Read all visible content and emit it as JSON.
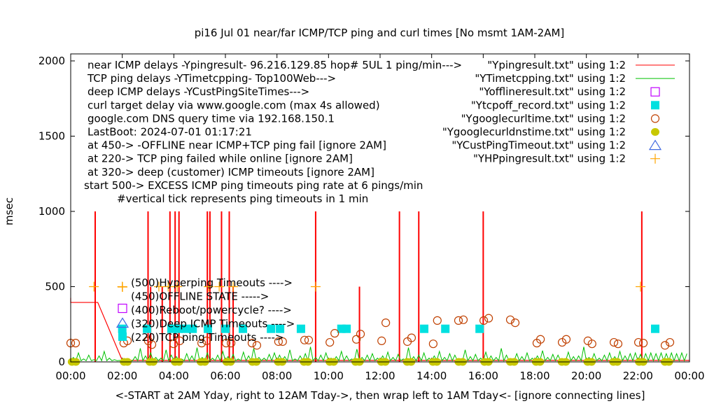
{
  "chart_data": {
    "type": "line",
    "title": "pi16 Jul 01  near/far ICMP/TCP ping and curl times [No msmt 1AM-2AM]",
    "xlabel": "<-START at 2AM Yday, right to 12AM Tday->, then wrap left to 1AM Tday<- [ignore connecting lines]",
    "ylabel": "msec",
    "xlim": [
      0,
      24
    ],
    "ylim": [
      0,
      2000
    ],
    "xticks": [
      {
        "v": 0,
        "label": "00:00"
      },
      {
        "v": 2,
        "label": "02:00"
      },
      {
        "v": 4,
        "label": "04:00"
      },
      {
        "v": 6,
        "label": "06:00"
      },
      {
        "v": 8,
        "label": "08:00"
      },
      {
        "v": 10,
        "label": "10:00"
      },
      {
        "v": 12,
        "label": "12:00"
      },
      {
        "v": 14,
        "label": "14:00"
      },
      {
        "v": 16,
        "label": "16:00"
      },
      {
        "v": 18,
        "label": "18:00"
      },
      {
        "v": 20,
        "label": "20:00"
      },
      {
        "v": 22,
        "label": "22:00"
      },
      {
        "v": 24,
        "label": "00:00"
      }
    ],
    "yticks": [
      {
        "v": 0,
        "label": "0"
      },
      {
        "v": 500,
        "label": "500"
      },
      {
        "v": 1000,
        "label": "1000"
      },
      {
        "v": 1500,
        "label": "1500"
      },
      {
        "v": 2000,
        "label": "2000"
      }
    ],
    "notes": [
      "near ICMP delays -Ypingresult- 96.216.129.85 hop# 5UL 1 ping/min--->",
      "TCP ping delays -YTimetcpping- Top100Web--->",
      "deep ICMP delays -YCustPingSiteTimes--->",
      "curl target delay via www.google.com (max 4s allowed)",
      "google.com DNS query time via 192.168.150.1",
      "LastBoot: 2024-07-01 01:17:21",
      "at 450-> -OFFLINE near ICMP+TCP ping fail [ignore 2AM]",
      "at 220-> TCP ping failed while online [ignore 2AM]",
      "at 320-> deep (customer) ICMP timeouts [ignore 2AM]",
      "start 500-> EXCESS ICMP ping timeouts ping rate at 6 pings/min",
      "#vertical tick represents ping timeouts in 1 min"
    ],
    "inner_legend": [
      {
        "label": "(500)Hyperping Timeouts ---->",
        "marker": "plus",
        "color": "#ffa500"
      },
      {
        "label": "(450)OFFLINE STATE ----->",
        "marker": "square-open",
        "color": "#c000ff"
      },
      {
        "label": "(400)Reboot/powercycle? ---->",
        "marker": "none",
        "color": "#000000"
      },
      {
        "label": "(320)Deep ICMP Timeouts ---->",
        "marker": "triangle",
        "color": "#4169e1"
      },
      {
        "label": "(220)TCP ping Timeouts ---->",
        "marker": "square-filled",
        "color": "#00e0e0"
      }
    ],
    "legend": [
      {
        "label": "\"Ypingresult.txt\" using 1:2",
        "marker": "line",
        "color": "#ff0000"
      },
      {
        "label": "\"YTimetcpping.txt\" using 1:2",
        "marker": "line",
        "color": "#00c000"
      },
      {
        "label": "\"Yofflineresult.txt\" using 1:2",
        "marker": "square-open",
        "color": "#c000ff"
      },
      {
        "label": "\"Ytcpoff_record.txt\" using 1:2",
        "marker": "square-filled",
        "color": "#00e0e0"
      },
      {
        "label": "\"Ygooglecurltime.txt\" using 1:2",
        "marker": "circle-open",
        "color": "#c04000"
      },
      {
        "label": "\"Ygooglecurldnstime.txt\" using 1:2",
        "marker": "circle-filled",
        "color": "#c8c800"
      },
      {
        "label": "\"YCustPingTimeout.txt\" using 1:2",
        "marker": "triangle",
        "color": "#4169e1"
      },
      {
        "label": "\"YHPpingresult.txt\" using 1:2",
        "marker": "plus",
        "color": "#ffa500"
      }
    ],
    "series": [
      {
        "name": "Ypingresult",
        "color": "#ff0000",
        "line": [
          [
            0,
            425
          ],
          [
            0,
            395
          ],
          [
            1.05,
            395
          ],
          [
            2.0,
            10
          ],
          [
            24,
            10
          ]
        ],
        "spikes": [
          [
            0.95,
            1000
          ],
          [
            3.0,
            1000
          ],
          [
            3.1,
            500
          ],
          [
            3.55,
            500
          ],
          [
            3.85,
            1000
          ],
          [
            4.05,
            1000
          ],
          [
            4.2,
            1000
          ],
          [
            5.3,
            1000
          ],
          [
            5.4,
            1000
          ],
          [
            5.85,
            1000
          ],
          [
            6.15,
            1000
          ],
          [
            6.3,
            500
          ],
          [
            9.5,
            1000
          ],
          [
            11.2,
            500
          ],
          [
            12.75,
            1000
          ],
          [
            13.5,
            1000
          ],
          [
            16.0,
            1000
          ],
          [
            22.15,
            1000
          ]
        ]
      },
      {
        "name": "YTimetcpping",
        "color": "#00c000",
        "step": 0.2,
        "values": [
          30,
          60,
          20,
          45,
          15,
          40,
          70,
          25,
          15,
          10,
          10,
          5,
          35,
          90,
          40,
          60,
          30,
          25,
          80,
          45,
          35,
          20,
          55,
          40,
          95,
          30,
          60,
          25,
          45,
          70,
          35,
          50,
          20,
          65,
          40,
          90,
          30,
          25,
          50,
          60,
          45,
          35,
          80,
          20,
          40,
          55,
          100,
          30,
          45,
          60,
          25,
          35,
          70,
          40,
          20,
          85,
          30,
          45,
          55,
          25,
          40,
          65,
          30,
          50,
          20,
          95,
          35,
          45,
          60,
          25,
          40,
          70,
          30,
          55,
          45,
          20,
          80,
          35,
          50,
          25,
          65,
          40,
          30,
          90,
          45,
          20,
          55,
          35,
          60,
          25,
          40,
          75,
          30,
          50,
          45,
          20,
          65,
          35,
          40,
          100,
          30,
          55,
          25,
          45,
          60,
          35,
          70,
          40,
          55,
          60,
          50,
          55,
          60,
          55,
          60,
          55,
          60,
          55,
          60,
          55
        ]
      },
      {
        "name": "Ytcpoff_record",
        "color": "#00e0e0",
        "values": [
          [
            2.0,
            220
          ],
          [
            2.96,
            220
          ],
          [
            3.91,
            220
          ],
          [
            4.18,
            220
          ],
          [
            4.45,
            220
          ],
          [
            4.73,
            220
          ],
          [
            5.32,
            220
          ],
          [
            6.0,
            220
          ],
          [
            6.68,
            220
          ],
          [
            7.77,
            220
          ],
          [
            8.12,
            220
          ],
          [
            8.93,
            220
          ],
          [
            10.5,
            220
          ],
          [
            10.7,
            220
          ],
          [
            13.71,
            220
          ],
          [
            14.53,
            220
          ],
          [
            15.86,
            220
          ],
          [
            22.67,
            220
          ]
        ]
      },
      {
        "name": "Ygooglecurltime",
        "color": "#c04000",
        "values": [
          [
            0,
            125
          ],
          [
            0.19,
            125
          ],
          [
            2.06,
            125
          ],
          [
            2.2,
            140
          ],
          [
            3.01,
            140
          ],
          [
            3.15,
            115
          ],
          [
            3.99,
            120
          ],
          [
            4.23,
            140
          ],
          [
            5.08,
            125
          ],
          [
            5.27,
            140
          ],
          [
            6.03,
            125
          ],
          [
            6.22,
            125
          ],
          [
            7.03,
            125
          ],
          [
            7.22,
            110
          ],
          [
            8.06,
            135
          ],
          [
            8.22,
            135
          ],
          [
            9.07,
            145
          ],
          [
            9.23,
            145
          ],
          [
            10.05,
            130
          ],
          [
            10.24,
            190
          ],
          [
            11.08,
            150
          ],
          [
            11.24,
            185
          ],
          [
            12.06,
            140
          ],
          [
            12.22,
            260
          ],
          [
            13.06,
            135
          ],
          [
            13.22,
            160
          ],
          [
            14.06,
            120
          ],
          [
            14.22,
            275
          ],
          [
            15.04,
            275
          ],
          [
            15.23,
            280
          ],
          [
            16.02,
            275
          ],
          [
            16.21,
            290
          ],
          [
            17.05,
            280
          ],
          [
            17.24,
            260
          ],
          [
            18.08,
            125
          ],
          [
            18.22,
            150
          ],
          [
            19.06,
            130
          ],
          [
            19.22,
            150
          ],
          [
            20.06,
            140
          ],
          [
            20.22,
            120
          ],
          [
            21.07,
            130
          ],
          [
            21.23,
            120
          ],
          [
            22.02,
            130
          ],
          [
            22.21,
            125
          ],
          [
            23.05,
            110
          ],
          [
            23.24,
            130
          ]
        ]
      },
      {
        "name": "Ygooglecurldnstime",
        "color": "#c8c800",
        "values": [
          [
            0.05,
            0
          ],
          [
            0.2,
            0
          ],
          [
            2.07,
            0
          ],
          [
            2.2,
            0
          ],
          [
            3.07,
            0
          ],
          [
            3.2,
            0
          ],
          [
            4.05,
            0
          ],
          [
            4.2,
            0
          ],
          [
            5.05,
            0
          ],
          [
            5.2,
            0
          ],
          [
            6.05,
            0
          ],
          [
            6.2,
            0
          ],
          [
            7.05,
            0
          ],
          [
            7.2,
            0
          ],
          [
            8.05,
            0
          ],
          [
            8.2,
            0
          ],
          [
            9.05,
            0
          ],
          [
            9.2,
            0
          ],
          [
            10.05,
            0
          ],
          [
            10.2,
            0
          ],
          [
            11.05,
            0
          ],
          [
            11.2,
            0
          ],
          [
            12.05,
            0
          ],
          [
            12.2,
            0
          ],
          [
            13.05,
            0
          ],
          [
            13.2,
            0
          ],
          [
            14.05,
            0
          ],
          [
            14.2,
            0
          ],
          [
            15.05,
            0
          ],
          [
            15.2,
            0
          ],
          [
            16.05,
            0
          ],
          [
            16.2,
            0
          ],
          [
            17.05,
            0
          ],
          [
            17.2,
            0
          ],
          [
            18.05,
            0
          ],
          [
            18.2,
            0
          ],
          [
            19.05,
            0
          ],
          [
            19.2,
            0
          ],
          [
            20.05,
            0
          ],
          [
            20.2,
            0
          ],
          [
            21.05,
            0
          ],
          [
            21.2,
            0
          ],
          [
            22.05,
            0
          ],
          [
            22.2,
            0
          ],
          [
            23.05,
            0
          ],
          [
            23.2,
            0
          ]
        ]
      },
      {
        "name": "YHPpingresult",
        "color": "#ffa500",
        "values": [
          [
            0.9,
            500
          ],
          [
            2.0,
            500
          ],
          [
            3.42,
            500
          ],
          [
            3.78,
            500
          ],
          [
            4.13,
            500
          ],
          [
            5.35,
            500
          ],
          [
            5.76,
            500
          ],
          [
            6.3,
            500
          ],
          [
            9.5,
            500
          ],
          [
            22.1,
            500
          ]
        ]
      }
    ]
  }
}
